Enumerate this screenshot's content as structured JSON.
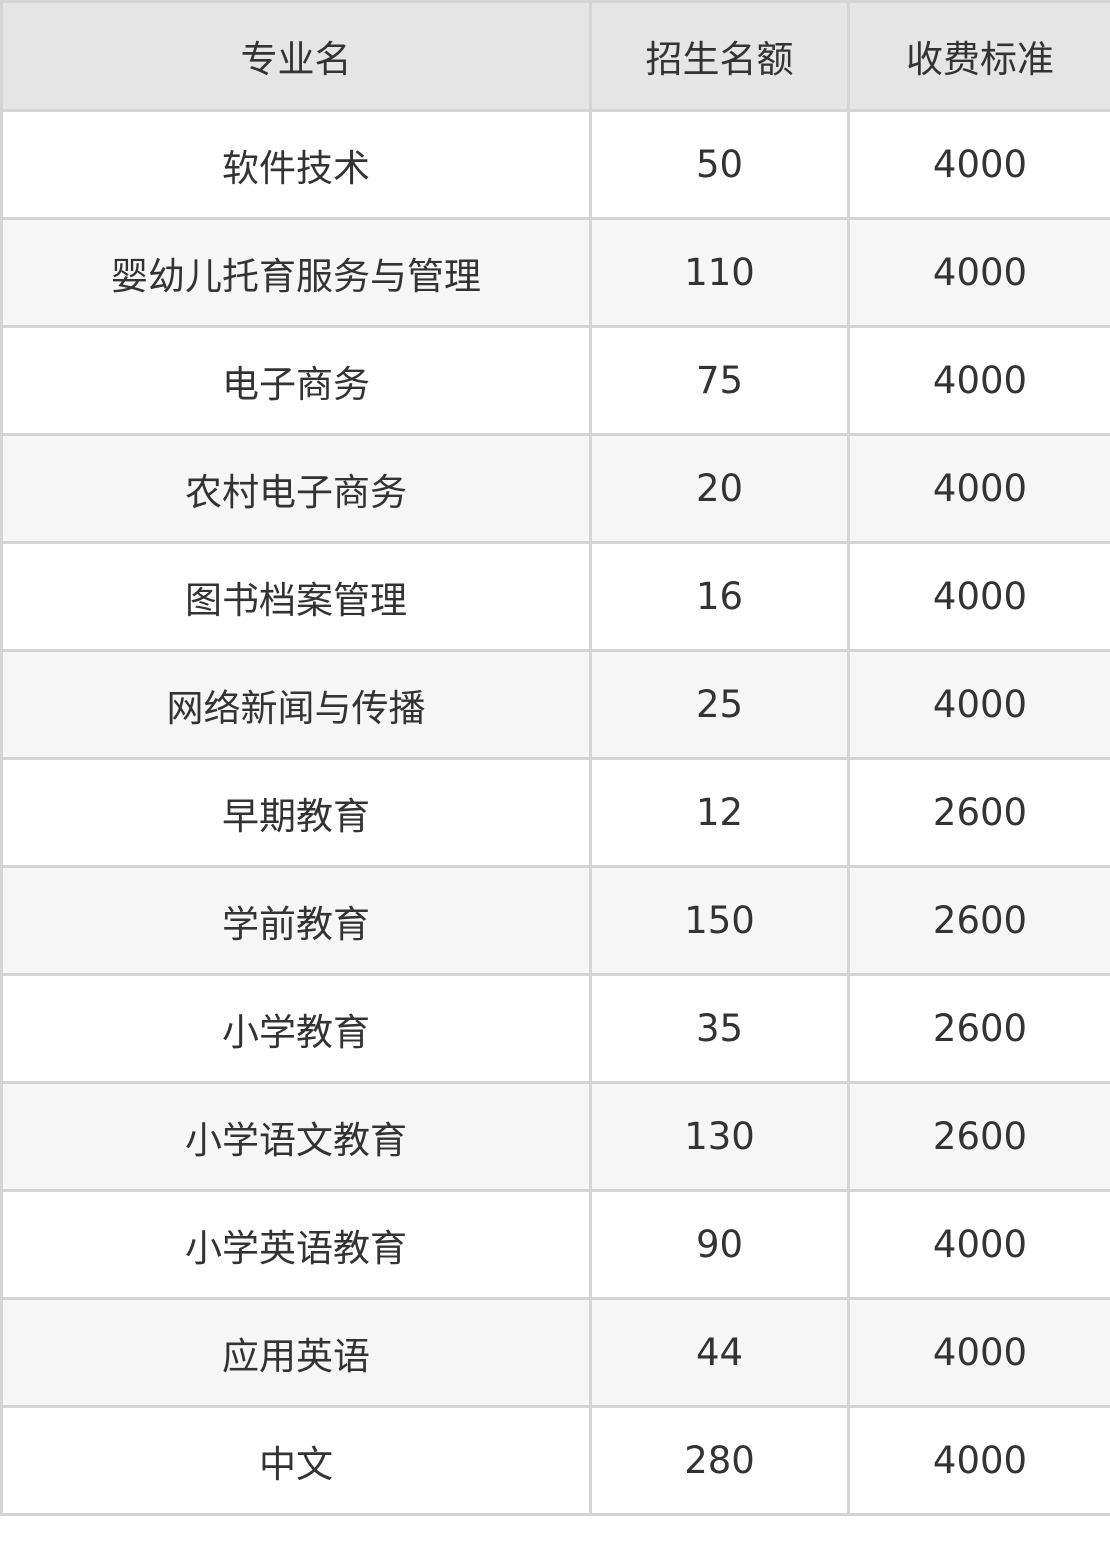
{
  "table": {
    "headers": [
      "专业名",
      "招生名额",
      "收费标准"
    ],
    "rows": [
      [
        "软件技术",
        "50",
        "4000"
      ],
      [
        "婴幼儿托育服务与管理",
        "110",
        "4000"
      ],
      [
        "电子商务",
        "75",
        "4000"
      ],
      [
        "农村电子商务",
        "20",
        "4000"
      ],
      [
        "图书档案管理",
        "16",
        "4000"
      ],
      [
        "网络新闻与传播",
        "25",
        "4000"
      ],
      [
        "早期教育",
        "12",
        "2600"
      ],
      [
        "学前教育",
        "150",
        "2600"
      ],
      [
        "小学教育",
        "35",
        "2600"
      ],
      [
        "小学语文教育",
        "130",
        "2600"
      ],
      [
        "小学英语教育",
        "90",
        "4000"
      ],
      [
        "应用英语",
        "44",
        "4000"
      ],
      [
        "中文",
        "280",
        "4000"
      ]
    ]
  }
}
